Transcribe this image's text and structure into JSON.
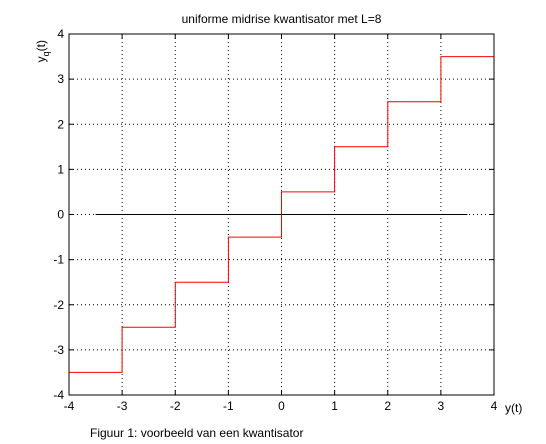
{
  "chart_data": {
    "type": "line",
    "title": "uniforme midrise kwantisator met L=8",
    "xlabel": "y(t)",
    "ylabel": "y",
    "ylabel_subscript": "q",
    "ylabel_suffix": "(t)",
    "xlim": [
      -4,
      4
    ],
    "ylim": [
      -4,
      4
    ],
    "xticks": [
      -4,
      -3,
      -2,
      -1,
      0,
      1,
      2,
      3,
      4
    ],
    "yticks": [
      -4,
      -3,
      -2,
      -1,
      0,
      1,
      2,
      3,
      4
    ],
    "grid": "dotted",
    "series": [
      {
        "color": "#ff0000",
        "style": "step",
        "x": [
          -4,
          -3,
          -3,
          -2,
          -2,
          -1,
          -1,
          0,
          0,
          1,
          1,
          2,
          2,
          3,
          3,
          4
        ],
        "y": [
          -3.5,
          -3.5,
          -2.5,
          -2.5,
          -1.5,
          -1.5,
          -0.5,
          -0.5,
          0.5,
          0.5,
          1.5,
          1.5,
          2.5,
          2.5,
          3.5,
          3.5
        ]
      },
      {
        "color": "#000000",
        "style": "line",
        "x": [
          -3.5,
          3.5
        ],
        "y": [
          0,
          0
        ]
      }
    ]
  },
  "caption": "Figuur 1: voorbeeld van een kwantisator"
}
